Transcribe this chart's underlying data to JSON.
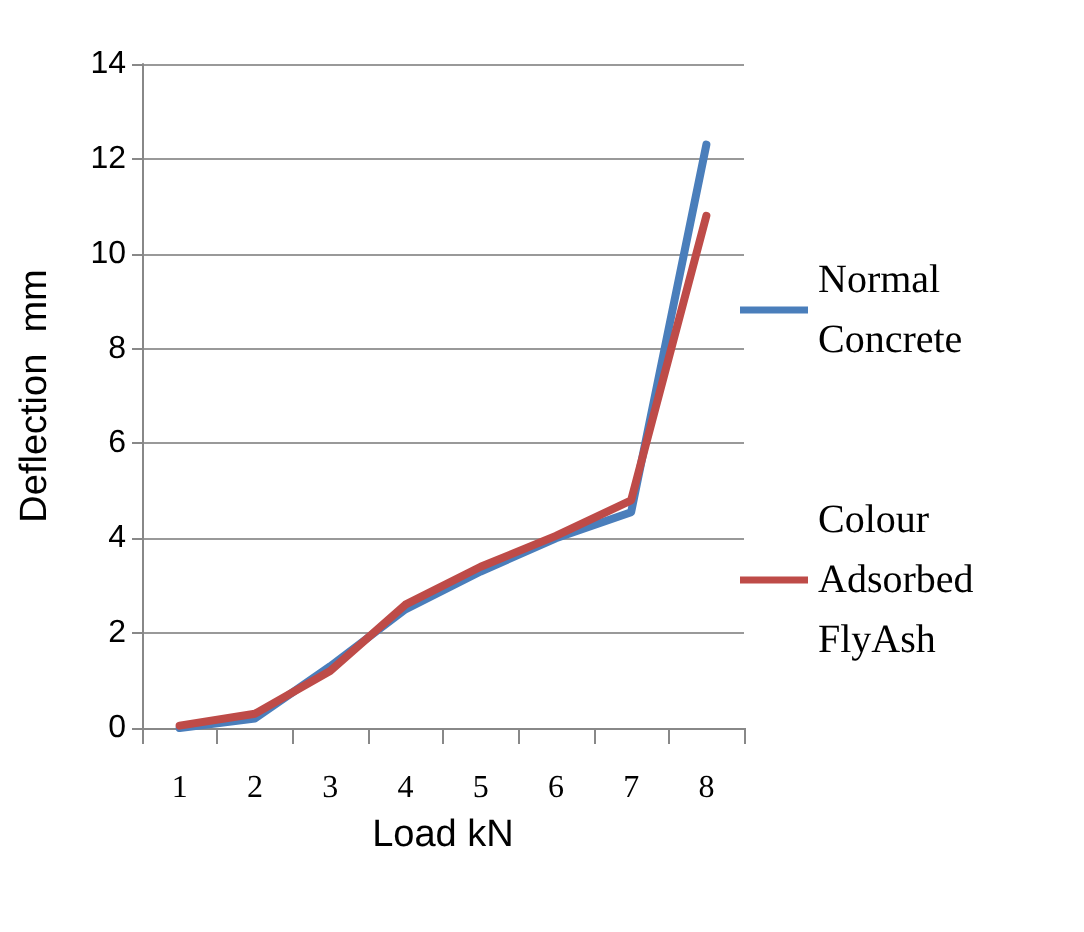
{
  "chart_data": {
    "type": "line",
    "xlabel": "Load kN",
    "ylabel": "Deflection  mm",
    "categories": [
      "1",
      "2",
      "3",
      "4",
      "5",
      "6",
      "7",
      "8"
    ],
    "series": [
      {
        "name": "Normal Concrete",
        "color": "#4a7ebb",
        "values": [
          0,
          0.2,
          1.3,
          2.5,
          3.3,
          4.0,
          4.55,
          12.3
        ]
      },
      {
        "name": "Colour Adsorbed FlyAsh",
        "color": "#be4b48",
        "values": [
          0.05,
          0.3,
          1.2,
          2.6,
          3.4,
          4.05,
          4.8,
          10.8
        ]
      }
    ],
    "ylim": [
      0,
      14
    ],
    "yticks": [
      0,
      2,
      4,
      6,
      8,
      10,
      12,
      14
    ],
    "grid": "y",
    "legend": "right",
    "marker": "none"
  }
}
